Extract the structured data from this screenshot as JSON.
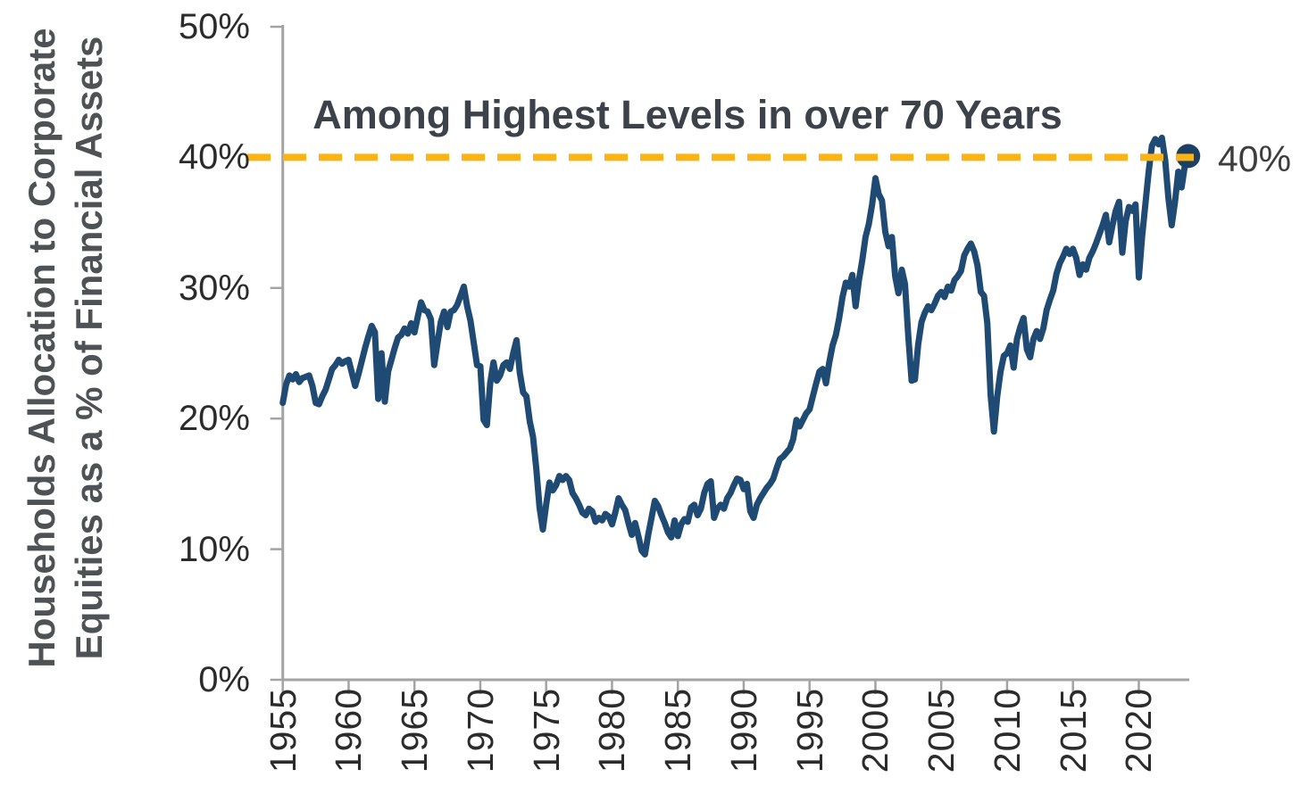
{
  "chart_data": {
    "type": "line",
    "annotation_title": "Among Highest Levels in over 70 Years",
    "y_axis_label_line1": "Households Allocation to Corporate",
    "y_axis_label_line2": "Equities as a % of Financial Assets",
    "ylim": [
      0,
      50
    ],
    "xlim": [
      1955,
      2024
    ],
    "grid": false,
    "legend": "none",
    "y_ticks": [
      {
        "value": 50,
        "label": "50%"
      },
      {
        "value": 40,
        "label": "40%"
      },
      {
        "value": 30,
        "label": "30%"
      },
      {
        "value": 20,
        "label": "20%"
      },
      {
        "value": 10,
        "label": "10%"
      },
      {
        "value": 0,
        "label": "0%"
      }
    ],
    "x_ticks": [
      {
        "value": 1955,
        "label": "1955"
      },
      {
        "value": 1960,
        "label": "1960"
      },
      {
        "value": 1965,
        "label": "1965"
      },
      {
        "value": 1970,
        "label": "1970"
      },
      {
        "value": 1975,
        "label": "1975"
      },
      {
        "value": 1980,
        "label": "1980"
      },
      {
        "value": 1985,
        "label": "1985"
      },
      {
        "value": 1990,
        "label": "1990"
      },
      {
        "value": 1995,
        "label": "1995"
      },
      {
        "value": 2000,
        "label": "2000"
      },
      {
        "value": 2005,
        "label": "2005"
      },
      {
        "value": 2010,
        "label": "2010"
      },
      {
        "value": 2015,
        "label": "2015"
      },
      {
        "value": 2020,
        "label": "2020"
      }
    ],
    "reference_line": {
      "value": 40,
      "style": "dashed",
      "color": "#FBB414",
      "label_right": "40%"
    },
    "end_marker": {
      "year": 2023.75,
      "value": 40.1
    },
    "series": [
      {
        "name": "Households allocation to corporate equities (% of financial assets)",
        "color": "#1F4A73",
        "start_year": 1955,
        "step_years": 0.25,
        "values": [
          21.2,
          22.6,
          23.3,
          23.0,
          23.4,
          22.8,
          23.1,
          23.2,
          23.3,
          22.5,
          21.2,
          21.1,
          21.7,
          22.2,
          23.0,
          23.8,
          24.1,
          24.5,
          24.2,
          24.4,
          24.5,
          23.5,
          22.5,
          23.4,
          24.4,
          25.4,
          26.3,
          27.1,
          26.6,
          21.5,
          25.0,
          21.3,
          23.6,
          24.5,
          25.4,
          26.2,
          26.4,
          26.9,
          26.5,
          27.3,
          26.6,
          27.8,
          28.9,
          28.3,
          28.2,
          27.6,
          24.1,
          25.8,
          27.4,
          28.2,
          27.0,
          28.2,
          28.3,
          28.7,
          29.4,
          30.1,
          28.6,
          27.5,
          25.8,
          24.1,
          24.0,
          19.9,
          19.5,
          22.7,
          24.3,
          22.9,
          23.3,
          24.1,
          24.3,
          23.8,
          25.0,
          26.0,
          23.5,
          22.0,
          21.7,
          19.8,
          18.6,
          16.2,
          13.2,
          11.5,
          13.4,
          15.1,
          14.5,
          14.9,
          15.6,
          15.3,
          15.6,
          15.3,
          14.3,
          13.9,
          13.4,
          12.8,
          12.6,
          13.1,
          12.9,
          12.1,
          12.4,
          12.2,
          12.7,
          12.5,
          11.9,
          12.8,
          13.9,
          13.4,
          13.0,
          12.0,
          11.1,
          12.0,
          11.0,
          9.9,
          9.6,
          11.1,
          12.4,
          13.7,
          13.3,
          12.6,
          12.0,
          11.3,
          10.9,
          12.2,
          11.0,
          11.9,
          12.3,
          12.1,
          13.2,
          13.4,
          12.6,
          13.1,
          14.3,
          15.0,
          15.2,
          12.4,
          13.1,
          13.4,
          13.1,
          13.9,
          14.3,
          14.9,
          15.4,
          15.3,
          14.6,
          15.0,
          12.9,
          12.4,
          13.4,
          13.9,
          14.3,
          14.7,
          15.0,
          15.4,
          16.2,
          16.9,
          17.1,
          17.4,
          17.7,
          18.4,
          19.9,
          19.4,
          19.9,
          20.4,
          20.7,
          21.7,
          22.7,
          23.6,
          23.8,
          22.7,
          24.3,
          25.6,
          26.4,
          27.7,
          29.3,
          30.4,
          30.1,
          31.0,
          28.6,
          30.6,
          32.1,
          33.9,
          34.9,
          36.4,
          38.4,
          37.2,
          36.7,
          34.3,
          33.2,
          33.9,
          30.9,
          29.6,
          31.4,
          30.3,
          26.3,
          22.9,
          23.0,
          25.7,
          27.4,
          28.1,
          28.6,
          28.3,
          28.8,
          29.4,
          29.7,
          29.3,
          30.1,
          29.8,
          30.6,
          30.9,
          31.3,
          32.5,
          33.0,
          33.4,
          32.8,
          31.7,
          29.7,
          29.4,
          27.3,
          21.8,
          19.0,
          21.7,
          23.6,
          24.8,
          25.0,
          25.6,
          23.9,
          26.1,
          27.0,
          27.7,
          25.3,
          24.7,
          26.1,
          26.7,
          26.1,
          26.9,
          28.3,
          29.1,
          29.8,
          31.1,
          31.9,
          32.4,
          33.0,
          32.6,
          33.0,
          32.3,
          31.0,
          31.8,
          31.4,
          32.3,
          32.8,
          33.4,
          34.1,
          34.8,
          35.6,
          33.5,
          34.8,
          35.9,
          36.6,
          32.7,
          35.1,
          36.2,
          35.9,
          36.4,
          30.8,
          33.9,
          36.4,
          38.9,
          40.9,
          41.4,
          41.0,
          41.5,
          39.8,
          36.9,
          34.8,
          36.6,
          38.9,
          37.7,
          39.4,
          40.1
        ]
      }
    ],
    "colors": {
      "line": "#1F4A73",
      "end_dot": "#1C4064",
      "reference_dash": "#FBB414",
      "axis": "#A3A3A3",
      "tick_labels": "#2B2B2B",
      "title": "#3D424A",
      "y_axis_title": "#4F5255",
      "background": "#FFFFFF"
    }
  }
}
